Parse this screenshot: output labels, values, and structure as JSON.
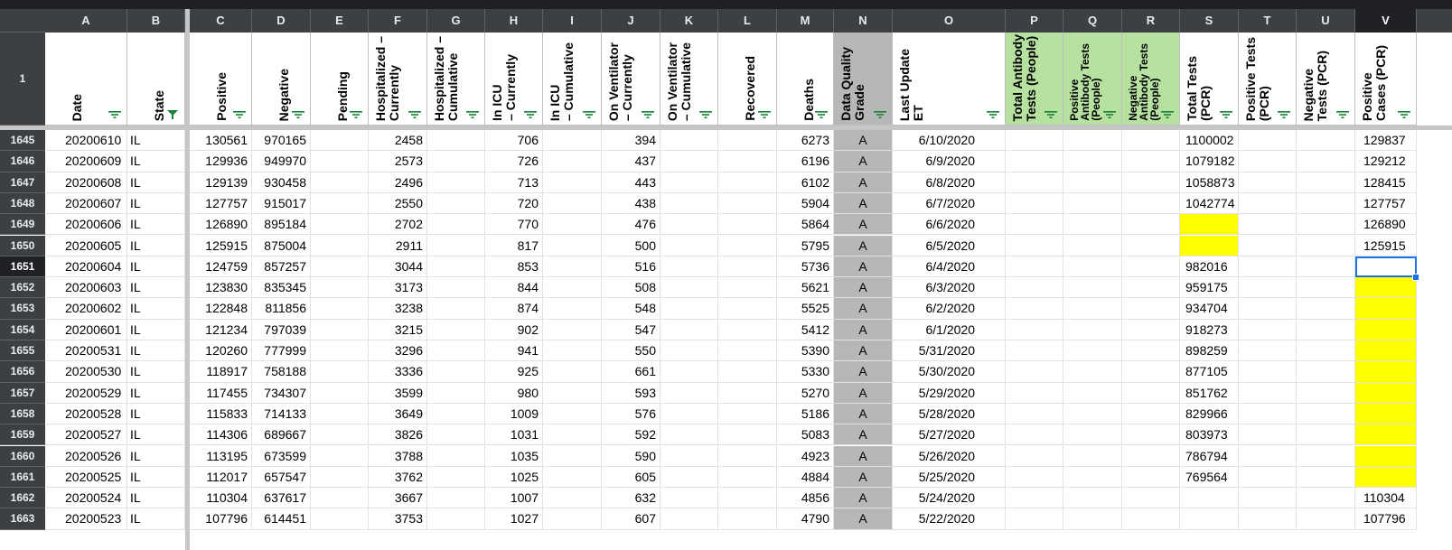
{
  "columns": [
    {
      "letter": "A",
      "header": "Date",
      "style": ""
    },
    {
      "letter": "B",
      "header": "State",
      "style": ""
    },
    {
      "letter": "C",
      "header": "Positive",
      "style": ""
    },
    {
      "letter": "D",
      "header": "Negative",
      "style": ""
    },
    {
      "letter": "E",
      "header": "Pending",
      "style": ""
    },
    {
      "letter": "F",
      "header": "Hospitalized –\nCurrently",
      "style": ""
    },
    {
      "letter": "G",
      "header": "Hospitalized –\nCumulative",
      "style": ""
    },
    {
      "letter": "H",
      "header": "In ICU\n– Currently",
      "style": ""
    },
    {
      "letter": "I",
      "header": "In ICU\n– Cumulative",
      "style": ""
    },
    {
      "letter": "J",
      "header": "On Ventilator\n– Currently",
      "style": ""
    },
    {
      "letter": "K",
      "header": "On Ventilator\n– Cumulative",
      "style": ""
    },
    {
      "letter": "L",
      "header": "Recovered",
      "style": ""
    },
    {
      "letter": "M",
      "header": "Deaths",
      "style": ""
    },
    {
      "letter": "N",
      "header": "Data Quality\nGrade",
      "style": "grey"
    },
    {
      "letter": "O",
      "header": "Last Update\nET",
      "style": ""
    },
    {
      "letter": "P",
      "header": "Total Antibody\nTests (People)",
      "style": "green"
    },
    {
      "letter": "Q",
      "header": "Positive\nAntibody Tests\n(People)",
      "style": "green"
    },
    {
      "letter": "R",
      "header": "Negative\nAntibody Tests\n(People)",
      "style": "green"
    },
    {
      "letter": "S",
      "header": "Total Tests\n(PCR)",
      "style": ""
    },
    {
      "letter": "T",
      "header": "Positive Tests\n(PCR)",
      "style": ""
    },
    {
      "letter": "U",
      "header": "Negative\nTests (PCR)",
      "style": ""
    },
    {
      "letter": "V",
      "header": "Positive\nCases (PCR)",
      "style": ""
    }
  ],
  "header_row_number": "1",
  "selected_row": "1651",
  "selected_column": "V",
  "rows": [
    {
      "n": "1645",
      "c": [
        "20200610",
        "IL",
        "130561",
        "970165",
        "",
        "2458",
        "",
        "706",
        "",
        "394",
        "",
        "",
        "6273",
        "A",
        "6/10/2020",
        "",
        "",
        "",
        "1100002",
        "",
        "",
        "129837"
      ]
    },
    {
      "n": "1646",
      "c": [
        "20200609",
        "IL",
        "129936",
        "949970",
        "",
        "2573",
        "",
        "726",
        "",
        "437",
        "",
        "",
        "6196",
        "A",
        "6/9/2020",
        "",
        "",
        "",
        "1079182",
        "",
        "",
        "129212"
      ]
    },
    {
      "n": "1647",
      "c": [
        "20200608",
        "IL",
        "129139",
        "930458",
        "",
        "2496",
        "",
        "713",
        "",
        "443",
        "",
        "",
        "6102",
        "A",
        "6/8/2020",
        "",
        "",
        "",
        "1058873",
        "",
        "",
        "128415"
      ]
    },
    {
      "n": "1648",
      "c": [
        "20200607",
        "IL",
        "127757",
        "915017",
        "",
        "2550",
        "",
        "720",
        "",
        "438",
        "",
        "",
        "5904",
        "A",
        "6/7/2020",
        "",
        "",
        "",
        "1042774",
        "",
        "",
        "127757"
      ]
    },
    {
      "n": "1649",
      "c": [
        "20200606",
        "IL",
        "126890",
        "895184",
        "",
        "2702",
        "",
        "770",
        "",
        "476",
        "",
        "",
        "5864",
        "A",
        "6/6/2020",
        "",
        "",
        "",
        "",
        "",
        "",
        "126890"
      ]
    },
    {
      "n": "1650",
      "c": [
        "20200605",
        "IL",
        "125915",
        "875004",
        "",
        "2911",
        "",
        "817",
        "",
        "500",
        "",
        "",
        "5795",
        "A",
        "6/5/2020",
        "",
        "",
        "",
        "",
        "",
        "",
        "125915"
      ]
    },
    {
      "n": "1651",
      "c": [
        "20200604",
        "IL",
        "124759",
        "857257",
        "",
        "3044",
        "",
        "853",
        "",
        "516",
        "",
        "",
        "5736",
        "A",
        "6/4/2020",
        "",
        "",
        "",
        "982016",
        "",
        "",
        ""
      ]
    },
    {
      "n": "1652",
      "c": [
        "20200603",
        "IL",
        "123830",
        "835345",
        "",
        "3173",
        "",
        "844",
        "",
        "508",
        "",
        "",
        "5621",
        "A",
        "6/3/2020",
        "",
        "",
        "",
        "959175",
        "",
        "",
        ""
      ]
    },
    {
      "n": "1653",
      "c": [
        "20200602",
        "IL",
        "122848",
        "811856",
        "",
        "3238",
        "",
        "874",
        "",
        "548",
        "",
        "",
        "5525",
        "A",
        "6/2/2020",
        "",
        "",
        "",
        "934704",
        "",
        "",
        ""
      ]
    },
    {
      "n": "1654",
      "c": [
        "20200601",
        "IL",
        "121234",
        "797039",
        "",
        "3215",
        "",
        "902",
        "",
        "547",
        "",
        "",
        "5412",
        "A",
        "6/1/2020",
        "",
        "",
        "",
        "918273",
        "",
        "",
        ""
      ]
    },
    {
      "n": "1655",
      "c": [
        "20200531",
        "IL",
        "120260",
        "777999",
        "",
        "3296",
        "",
        "941",
        "",
        "550",
        "",
        "",
        "5390",
        "A",
        "5/31/2020",
        "",
        "",
        "",
        "898259",
        "",
        "",
        ""
      ]
    },
    {
      "n": "1656",
      "c": [
        "20200530",
        "IL",
        "118917",
        "758188",
        "",
        "3336",
        "",
        "925",
        "",
        "661",
        "",
        "",
        "5330",
        "A",
        "5/30/2020",
        "",
        "",
        "",
        "877105",
        "",
        "",
        ""
      ]
    },
    {
      "n": "1657",
      "c": [
        "20200529",
        "IL",
        "117455",
        "734307",
        "",
        "3599",
        "",
        "980",
        "",
        "593",
        "",
        "",
        "5270",
        "A",
        "5/29/2020",
        "",
        "",
        "",
        "851762",
        "",
        "",
        ""
      ]
    },
    {
      "n": "1658",
      "c": [
        "20200528",
        "IL",
        "115833",
        "714133",
        "",
        "3649",
        "",
        "1009",
        "",
        "576",
        "",
        "",
        "5186",
        "A",
        "5/28/2020",
        "",
        "",
        "",
        "829966",
        "",
        "",
        ""
      ]
    },
    {
      "n": "1659",
      "c": [
        "20200527",
        "IL",
        "114306",
        "689667",
        "",
        "3826",
        "",
        "1031",
        "",
        "592",
        "",
        "",
        "5083",
        "A",
        "5/27/2020",
        "",
        "",
        "",
        "803973",
        "",
        "",
        ""
      ]
    },
    {
      "n": "1660",
      "c": [
        "20200526",
        "IL",
        "113195",
        "673599",
        "",
        "3788",
        "",
        "1035",
        "",
        "590",
        "",
        "",
        "4923",
        "A",
        "5/26/2020",
        "",
        "",
        "",
        "786794",
        "",
        "",
        ""
      ]
    },
    {
      "n": "1661",
      "c": [
        "20200525",
        "IL",
        "112017",
        "657547",
        "",
        "3762",
        "",
        "1025",
        "",
        "605",
        "",
        "",
        "4884",
        "A",
        "5/25/2020",
        "",
        "",
        "",
        "769564",
        "",
        "",
        ""
      ]
    },
    {
      "n": "1662",
      "c": [
        "20200524",
        "IL",
        "110304",
        "637617",
        "",
        "3667",
        "",
        "1007",
        "",
        "632",
        "",
        "",
        "4856",
        "A",
        "5/24/2020",
        "",
        "",
        "",
        "",
        "",
        "",
        "110304"
      ]
    },
    {
      "n": "1663",
      "c": [
        "20200523",
        "IL",
        "107796",
        "614451",
        "",
        "3753",
        "",
        "1027",
        "",
        "607",
        "",
        "",
        "4790",
        "A",
        "5/22/2020",
        "",
        "",
        "",
        "",
        "",
        "",
        "107796"
      ]
    }
  ],
  "yellow_cells": [
    {
      "row": "1649",
      "col": "S"
    },
    {
      "row": "1650",
      "col": "S"
    },
    {
      "row": "1652",
      "col": "V"
    },
    {
      "row": "1653",
      "col": "V"
    },
    {
      "row": "1654",
      "col": "V"
    },
    {
      "row": "1655",
      "col": "V"
    },
    {
      "row": "1656",
      "col": "V"
    },
    {
      "row": "1657",
      "col": "V"
    },
    {
      "row": "1658",
      "col": "V"
    },
    {
      "row": "1659",
      "col": "V"
    },
    {
      "row": "1660",
      "col": "V"
    },
    {
      "row": "1661",
      "col": "V"
    }
  ],
  "filter_active_column": "B",
  "colors": {
    "header_dark": "#3c4043",
    "green_header": "#b7e1a1",
    "grey_column": "#b7b7b7",
    "highlight_yellow": "#ffff00",
    "selection_blue": "#1a73e8",
    "filter_icon": "#188038"
  }
}
